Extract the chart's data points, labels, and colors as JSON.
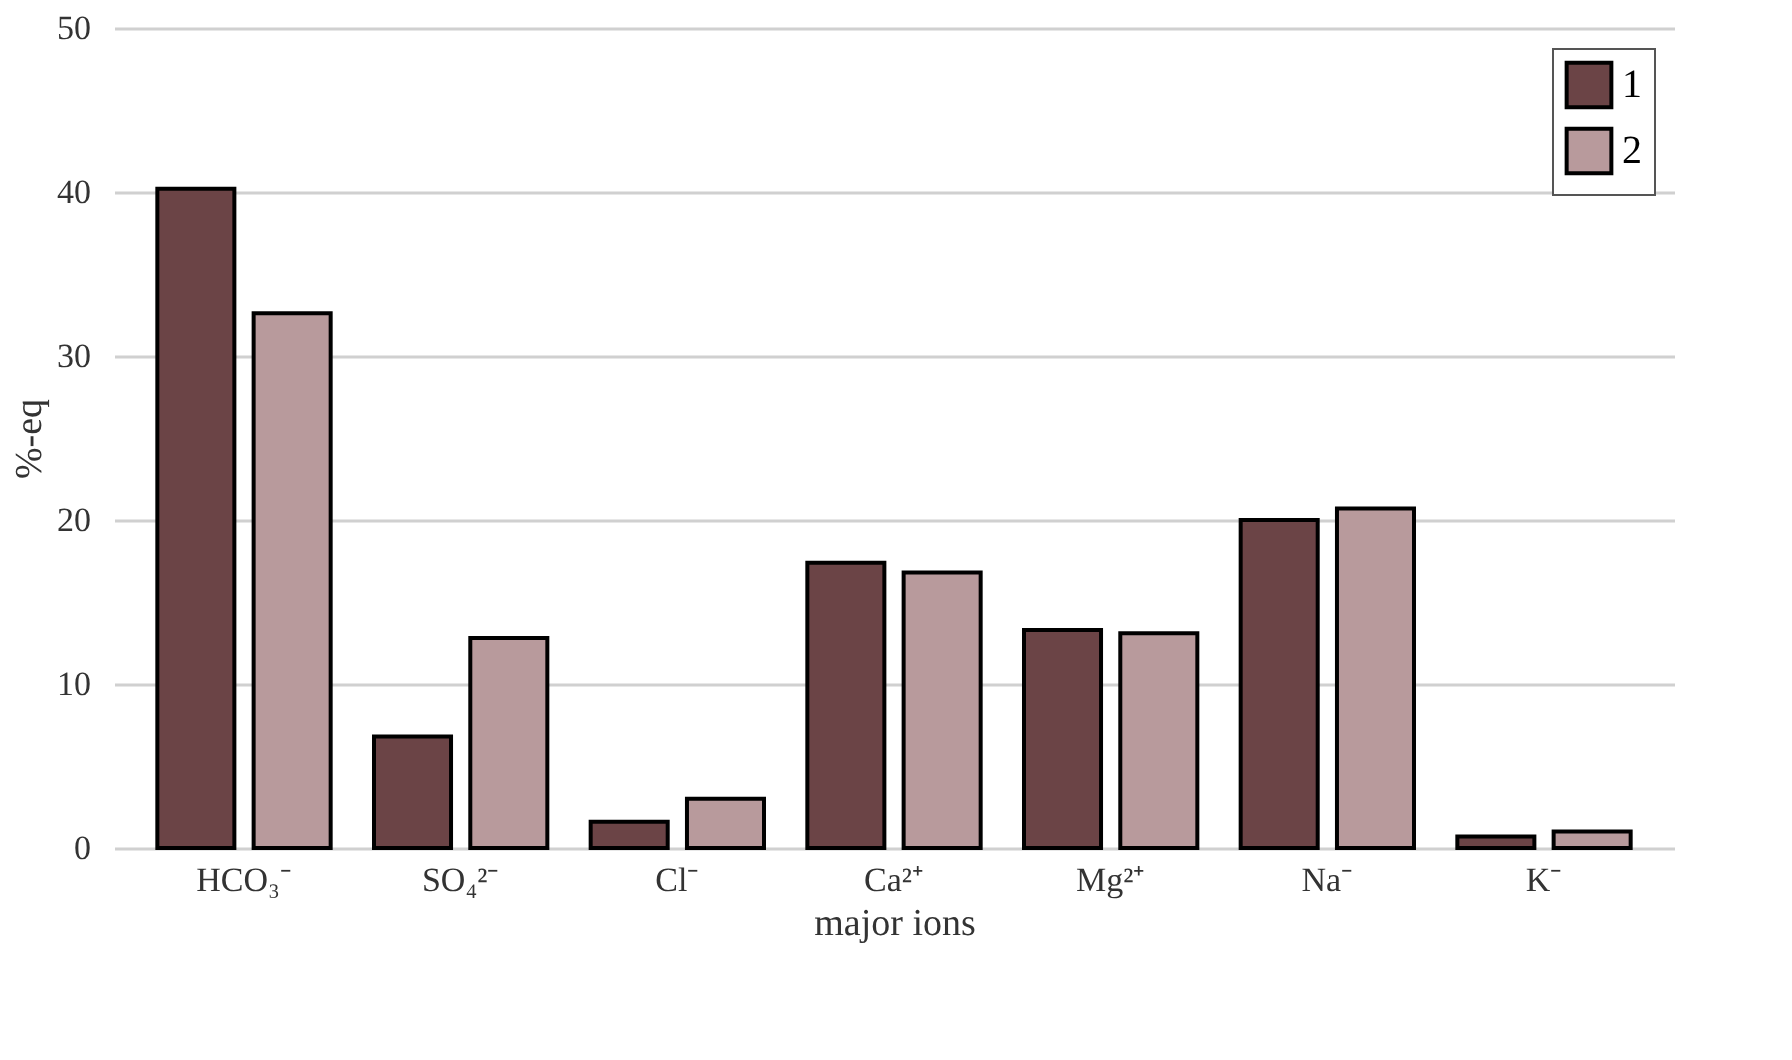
{
  "chart_data": {
    "type": "bar",
    "xlabel": "major ions",
    "ylabel": "%-eq",
    "categories": [
      "HCO₃⁻",
      "SO₄²⁻",
      "Cl⁻",
      "Ca²⁺",
      "Mg²⁺",
      "Na⁻",
      "K⁻"
    ],
    "series": [
      {
        "name": "1",
        "color": "#6b4446",
        "values": [
          40.2,
          6.8,
          1.6,
          17.4,
          13.3,
          20.0,
          0.7
        ]
      },
      {
        "name": "2",
        "color": "#b89a9c",
        "values": [
          32.6,
          12.8,
          3.0,
          16.8,
          13.1,
          20.7,
          1.0
        ]
      }
    ],
    "ylim": [
      0,
      50
    ],
    "yticks": [
      0,
      10,
      20,
      30,
      40,
      50
    ],
    "grid": "y",
    "legend": "top right"
  }
}
